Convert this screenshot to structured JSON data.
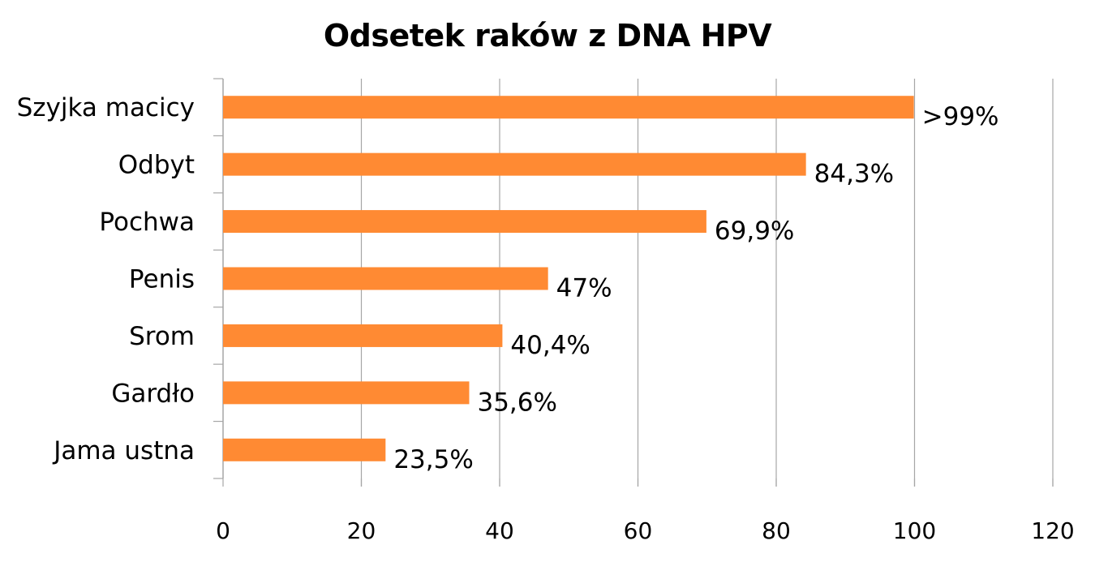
{
  "chart_data": {
    "type": "bar",
    "orientation": "horizontal",
    "title": "Odsetek raków z DNA HPV",
    "xlabel": "",
    "ylabel": "",
    "categories": [
      "Szyjka macicy",
      "Odbyt",
      "Pochwa",
      "Penis",
      "Srom",
      "Gardło",
      "Jama ustna"
    ],
    "values": [
      99.9,
      84.3,
      69.9,
      47,
      40.4,
      35.6,
      23.5
    ],
    "data_labels": [
      ">99%",
      "84,3%",
      "69,9%",
      "47%",
      "40,4%",
      "35,6%",
      "23,5%"
    ],
    "xlim": [
      0,
      120
    ],
    "x_ticks": [
      "0",
      "20",
      "40",
      "60",
      "80",
      "100",
      "120"
    ],
    "grid": "vertical",
    "legend": "none",
    "bar_color": "#FF8A33",
    "grid_color": "#A6A6A6"
  }
}
